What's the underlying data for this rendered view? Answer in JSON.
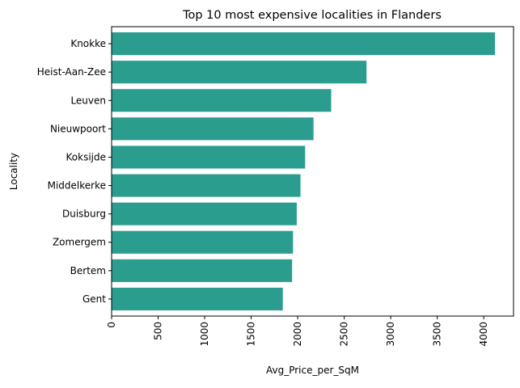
{
  "chart_data": {
    "type": "bar",
    "orientation": "horizontal",
    "title": "Top 10 most expensive localities in Flanders",
    "xlabel": "Avg_Price_per_SqM",
    "ylabel": "Locality",
    "categories": [
      "Knokke",
      "Heist-Aan-Zee",
      "Leuven",
      "Nieuwpoort",
      "Koksijde",
      "Middelkerke",
      "Duisburg",
      "Zomergem",
      "Bertem",
      "Gent"
    ],
    "values": [
      4120,
      2740,
      2360,
      2170,
      2080,
      2030,
      1990,
      1950,
      1940,
      1840
    ],
    "xlim": [
      0,
      4320
    ],
    "xticks": [
      0,
      500,
      1000,
      1500,
      2000,
      2500,
      3000,
      3500,
      4000
    ],
    "xtick_labels": [
      "0",
      "500",
      "1000",
      "1500",
      "2000",
      "2500",
      "3000",
      "3500",
      "4000"
    ],
    "xtick_rotation": 90,
    "bar_color": "#2a9d8f",
    "grid": false,
    "legend": "none"
  }
}
